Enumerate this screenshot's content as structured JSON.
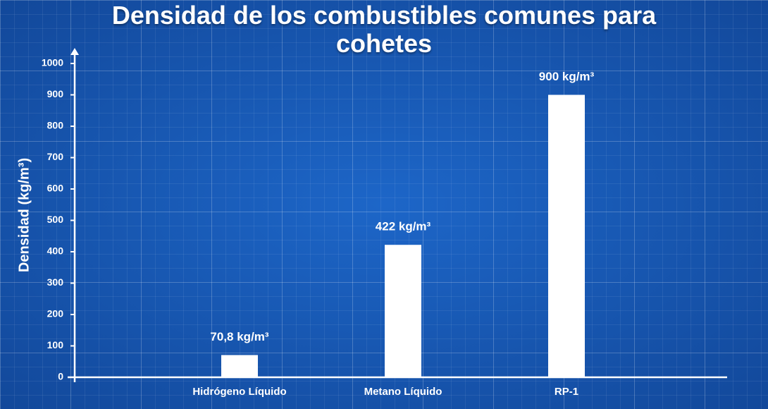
{
  "chart_data": {
    "type": "bar",
    "title": "Densidad de los combustibles comunes para cohetes",
    "y_label": "Densidad (kg/m³)",
    "categories": [
      "Hidrógeno Líquido",
      "Metano Líquido",
      "RP-1"
    ],
    "values": [
      70.8,
      422,
      900
    ],
    "value_labels": [
      "70,8 kg/m³",
      "422 kg/m³",
      "900 kg/m³"
    ],
    "color": "#ffffff",
    "ylim": [
      0,
      1000
    ],
    "yticks": [
      0,
      100,
      200,
      300,
      400,
      500,
      600,
      700,
      800,
      900,
      1000
    ]
  }
}
